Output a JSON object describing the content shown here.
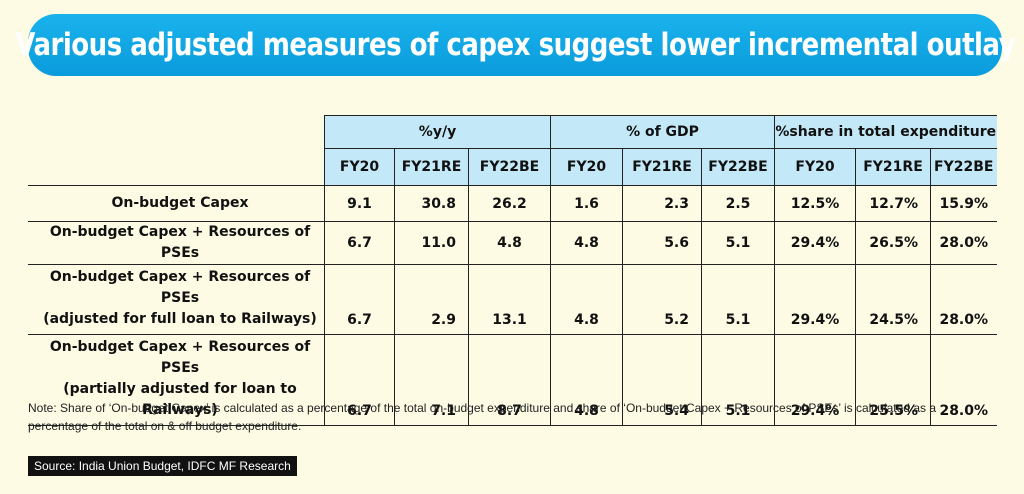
{
  "title": "Various adjusted measures of capex suggest lower incremental outlay",
  "chart_data": {
    "type": "table",
    "groups": [
      "%y/y",
      "% of GDP",
      "%share in total expenditure"
    ],
    "columns": [
      "FY20",
      "FY21RE",
      "FY22BE",
      "FY20",
      "FY21RE",
      "FY22BE",
      "FY20",
      "FY21RE",
      "FY22BE"
    ],
    "rows": [
      {
        "label_lines": [
          "On-budget Capex"
        ],
        "values": [
          "9.1",
          "30.8",
          "26.2",
          "1.6",
          "2.3",
          "2.5",
          "12.5%",
          "12.7%",
          "15.9%"
        ]
      },
      {
        "label_lines": [
          "On-budget Capex + Resources of PSEs"
        ],
        "values": [
          "6.7",
          "11.0",
          "4.8",
          "4.8",
          "5.6",
          "5.1",
          "29.4%",
          "26.5%",
          "28.0%"
        ]
      },
      {
        "label_lines": [
          "On-budget Capex + Resources of PSEs",
          "(adjusted for full loan to Railways)"
        ],
        "values": [
          "6.7",
          "2.9",
          "13.1",
          "4.8",
          "5.2",
          "5.1",
          "29.4%",
          "24.5%",
          "28.0%"
        ]
      },
      {
        "label_lines": [
          "On-budget Capex + Resources of PSEs",
          "(partially adjusted for loan to Railways)"
        ],
        "values": [
          "6.7",
          "7.1",
          "8.7",
          "4.8",
          "5.4",
          "5.1",
          "29.4%",
          "25.5%",
          "28.0%"
        ]
      }
    ]
  },
  "note": "Note: Share of ‘On-budget Capex’ is calculated as a percentage of the total on-budget expenditure and share of ‘On-budget Capex + Resources of PSEs’ is calculated as a percentage of the total on & off budget expenditure.",
  "source": "Source: India Union Budget, IDFC MF Research",
  "colors": {
    "title_bar": "#0fa8e6",
    "header_fill": "#c3e8f7",
    "background": "#fdfbe4"
  }
}
